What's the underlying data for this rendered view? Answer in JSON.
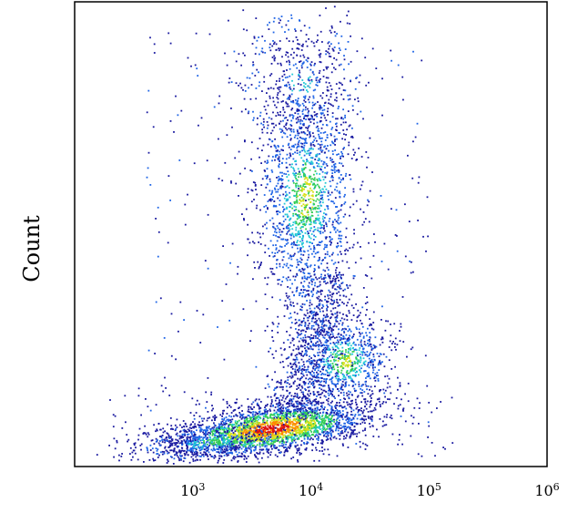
{
  "chart_data": {
    "type": "scatter",
    "title": "",
    "xlabel": "",
    "ylabel": "Count",
    "x_scale": "log10",
    "xlim": [
      100,
      1000000
    ],
    "x_ticks": [
      {
        "value": 1000,
        "base": "10",
        "exp": "3"
      },
      {
        "value": 10000,
        "base": "10",
        "exp": "4"
      },
      {
        "value": 100000,
        "base": "10",
        "exp": "5"
      },
      {
        "value": 1000000,
        "base": "10",
        "exp": "6"
      }
    ],
    "y_ticks": [],
    "grid": false,
    "legend": "none",
    "colormap": [
      "#1a1aa0",
      "#1e64e6",
      "#22c8d6",
      "#33cc55",
      "#d6e01a",
      "#ff8800",
      "#dd1111"
    ],
    "populations": [
      {
        "x_center": 5000,
        "relative_y_center": 0.07,
        "density": "highest"
      },
      {
        "x_center": 9000,
        "relative_y_center": 0.62,
        "density": "medium"
      },
      {
        "x_center": 22000,
        "relative_y_center": 0.22,
        "density": "medium"
      }
    ]
  }
}
